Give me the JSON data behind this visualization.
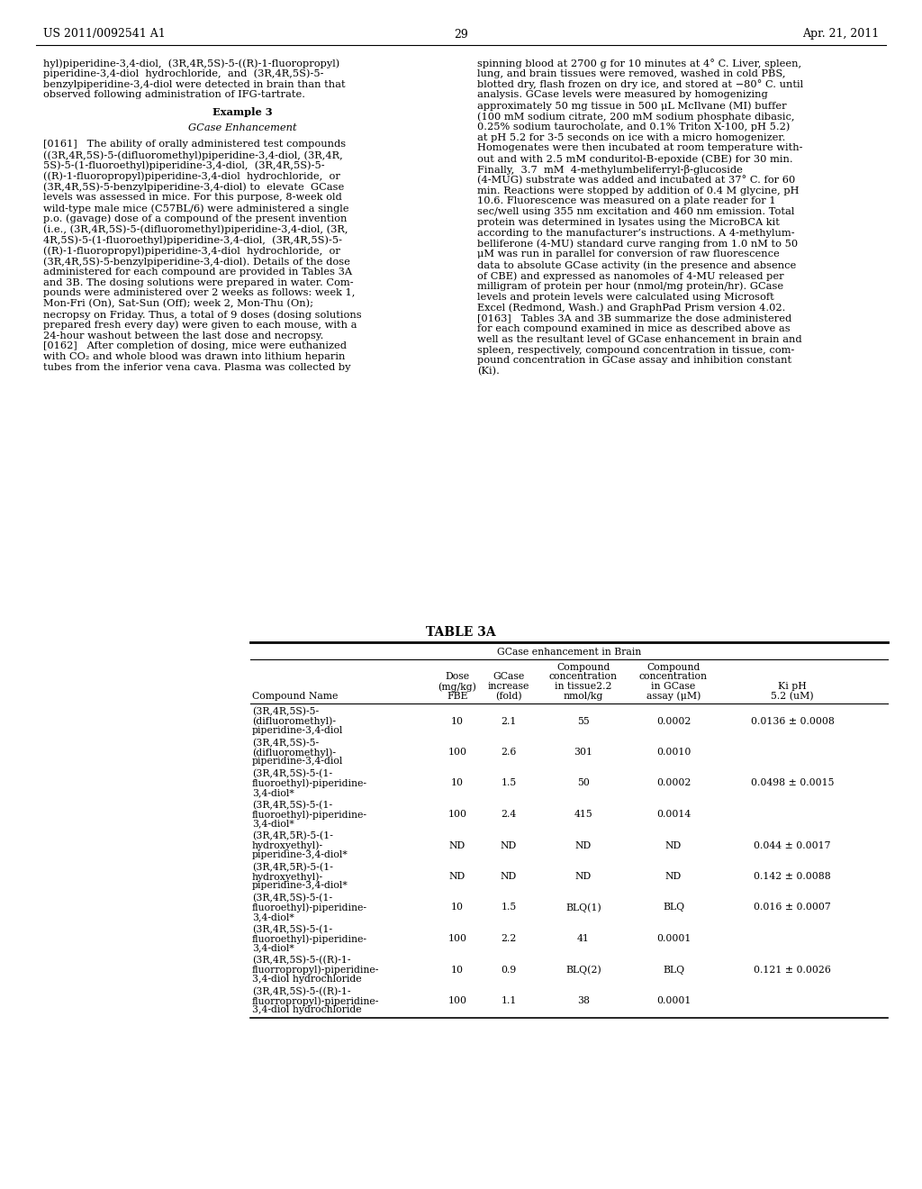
{
  "header_left": "US 2011/0092541 A1",
  "header_right": "Apr. 21, 2011",
  "page_number": "29",
  "left_col": [
    {
      "text": "hyl)piperidine-3,4-diol,  (3R,4R,5S)-5-((R)-1-fluoropropyl)",
      "indent": 0
    },
    {
      "text": "piperidine-3,4-diol  hydrochloride,  and  (3R,4R,5S)-5-",
      "indent": 0
    },
    {
      "text": "benzylpiperidine-3,4-diol were detected in brain than that",
      "indent": 0
    },
    {
      "text": "observed following administration of IFG-tartrate.",
      "indent": 0
    },
    {
      "text": "",
      "indent": 0
    },
    {
      "text": "Example 3",
      "indent": 0,
      "center": true,
      "bold": true
    },
    {
      "text": "",
      "indent": 0
    },
    {
      "text": "GCase Enhancement",
      "indent": 0,
      "center": true,
      "italic": true
    },
    {
      "text": "",
      "indent": 0
    },
    {
      "text": "[0161]   The ability of orally administered test compounds",
      "indent": 0
    },
    {
      "text": "((3R,4R,5S)-5-(difluoromethyl)piperidine-3,4-diol, (3R,4R,",
      "indent": 0
    },
    {
      "text": "5S)-5-(1-fluoroethyl)piperidine-3,4-diol,  (3R,4R,5S)-5-",
      "indent": 0
    },
    {
      "text": "((R)-1-fluoropropyl)piperidine-3,4-diol  hydrochloride,  or",
      "indent": 0
    },
    {
      "text": "(3R,4R,5S)-5-benzylpiperidine-3,4-diol) to  elevate  GCase",
      "indent": 0
    },
    {
      "text": "levels was assessed in mice. For this purpose, 8-week old",
      "indent": 0
    },
    {
      "text": "wild-type male mice (C57BL/6) were administered a single",
      "indent": 0
    },
    {
      "text": "p.o. (gavage) dose of a compound of the present invention",
      "indent": 0
    },
    {
      "text": "(i.e., (3R,4R,5S)-5-(difluoromethyl)piperidine-3,4-diol, (3R,",
      "indent": 0
    },
    {
      "text": "4R,5S)-5-(1-fluoroethyl)piperidine-3,4-diol,  (3R,4R,5S)-5-",
      "indent": 0
    },
    {
      "text": "((R)-1-fluoropropyl)piperidine-3,4-diol  hydrochloride,  or",
      "indent": 0
    },
    {
      "text": "(3R,4R,5S)-5-benzylpiperidine-3,4-diol). Details of the dose",
      "indent": 0
    },
    {
      "text": "administered for each compound are provided in Tables 3A",
      "indent": 0
    },
    {
      "text": "and 3B. The dosing solutions were prepared in water. Com-",
      "indent": 0
    },
    {
      "text": "pounds were administered over 2 weeks as follows: week 1,",
      "indent": 0
    },
    {
      "text": "Mon-Fri (On), Sat-Sun (Off); week 2, Mon-Thu (On);",
      "indent": 0
    },
    {
      "text": "necropsy on Friday. Thus, a total of 9 doses (dosing solutions",
      "indent": 0
    },
    {
      "text": "prepared fresh every day) were given to each mouse, with a",
      "indent": 0
    },
    {
      "text": "24-hour washout between the last dose and necropsy.",
      "indent": 0
    },
    {
      "text": "[0162]   After completion of dosing, mice were euthanized",
      "indent": 0
    },
    {
      "text": "with CO₂ and whole blood was drawn into lithium heparin",
      "indent": 0
    },
    {
      "text": "tubes from the inferior vena cava. Plasma was collected by",
      "indent": 0
    }
  ],
  "right_col": [
    "spinning blood at 2700 g for 10 minutes at 4° C. Liver, spleen,",
    "lung, and brain tissues were removed, washed in cold PBS,",
    "blotted dry, flash frozen on dry ice, and stored at −80° C. until",
    "analysis. GCase levels were measured by homogenizing",
    "approximately 50 mg tissue in 500 μL McIlvane (MI) buffer",
    "(100 mM sodium citrate, 200 mM sodium phosphate dibasic,",
    "0.25% sodium taurocholate, and 0.1% Triton X-100, pH 5.2)",
    "at pH 5.2 for 3-5 seconds on ice with a micro homogenizer.",
    "Homogenates were then incubated at room temperature with-",
    "out and with 2.5 mM conduritol-B-epoxide (CBE) for 30 min.",
    "Finally,  3.7  mM  4-methylumbeliferryl-β-glucoside",
    "(4-MUG) substrate was added and incubated at 37° C. for 60",
    "min. Reactions were stopped by addition of 0.4 M glycine, pH",
    "10.6. Fluorescence was measured on a plate reader for 1",
    "sec/well using 355 nm excitation and 460 nm emission. Total",
    "protein was determined in lysates using the MicroBCA kit",
    "according to the manufacturer’s instructions. A 4-methylum-",
    "belliferone (4-MU) standard curve ranging from 1.0 nM to 50",
    "μM was run in parallel for conversion of raw fluorescence",
    "data to absolute GCase activity (in the presence and absence",
    "of CBE) and expressed as nanomoles of 4-MU released per",
    "milligram of protein per hour (nmol/mg protein/hr). GCase",
    "levels and protein levels were calculated using Microsoft",
    "Excel (Redmond, Wash.) and GraphPad Prism version 4.02.",
    "[0163]   Tables 3A and 3B summarize the dose administered",
    "for each compound examined in mice as described above as",
    "well as the resultant level of GCase enhancement in brain and",
    "spleen, respectively, compound concentration in tissue, com-",
    "pound concentration in GCase assay and inhibition constant",
    "(Ki)."
  ],
  "table_title": "TABLE 3A",
  "table_subtitle": "GCase enhancement in Brain",
  "col_headers": [
    [
      "Compound Name"
    ],
    [
      "Dose",
      "(mg/kg)",
      "FBE"
    ],
    [
      "GCase",
      "increase",
      "(fold)"
    ],
    [
      "Compound",
      "concentration",
      "in tissue2.2",
      "nmol/kg"
    ],
    [
      "Compound",
      "concentration",
      "in GCase",
      "assay (μM)"
    ],
    [
      "Ki pH",
      "5.2 (uM)"
    ]
  ],
  "table_rows": [
    [
      "(3R,4R,5S)-5-",
      "(difluoromethyl)-",
      "piperidine-3,4-diol",
      "10",
      "2.1",
      "55",
      "0.0002",
      "0.0136 ± 0.0008"
    ],
    [
      "(3R,4R,5S)-5-",
      "(difluoromethyl)-",
      "piperidine-3,4-diol",
      "100",
      "2.6",
      "301",
      "0.0010",
      ""
    ],
    [
      "(3R,4R,5S)-5-(1-",
      "fluoroethyl)-piperidine-",
      "3,4-diol*",
      "10",
      "1.5",
      "50",
      "0.0002",
      "0.0498 ± 0.0015"
    ],
    [
      "(3R,4R,5S)-5-(1-",
      "fluoroethyl)-piperidine-",
      "3,4-diol*",
      "100",
      "2.4",
      "415",
      "0.0014",
      ""
    ],
    [
      "(3R,4R,5R)-5-(1-",
      "hydroxyethyl)-",
      "piperidine-3,4-diol*",
      "ND",
      "ND",
      "ND",
      "ND",
      "0.044 ± 0.0017"
    ],
    [
      "(3R,4R,5R)-5-(1-",
      "hydroxyethyl)-",
      "piperidine-3,4-diol*",
      "ND",
      "ND",
      "ND",
      "ND",
      "0.142 ± 0.0088"
    ],
    [
      "(3R,4R,5S)-5-(1-",
      "fluoroethyl)-piperidine-",
      "3,4-diol*",
      "10",
      "1.5",
      "BLQ(1)",
      "BLQ",
      "0.016 ± 0.0007"
    ],
    [
      "(3R,4R,5S)-5-(1-",
      "fluoroethyl)-piperidine-",
      "3,4-diol*",
      "100",
      "2.2",
      "41",
      "0.0001",
      ""
    ],
    [
      "(3R,4R,5S)-5-((R)-1-",
      "fluorropropyl)-piperidine-",
      "3,4-diol hydrochloride",
      "10",
      "0.9",
      "BLQ(2)",
      "BLQ",
      "0.121 ± 0.0026"
    ],
    [
      "(3R,4R,5S)-5-((R)-1-",
      "fluorropropyl)-piperidine-",
      "3,4-diol hydrochloride",
      "100",
      "1.1",
      "38",
      "0.0001",
      ""
    ]
  ],
  "bg_color": "#ffffff",
  "text_color": "#000000"
}
